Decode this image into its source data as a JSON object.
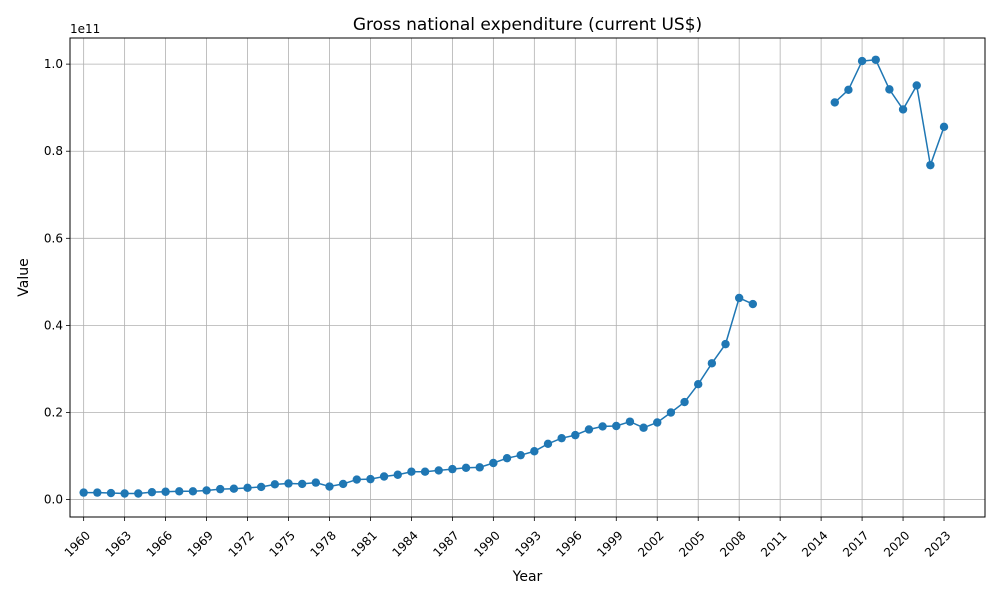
{
  "chart_data": {
    "type": "line",
    "title": "Gross national expenditure (current US$)",
    "xlabel": "Year",
    "ylabel": "Value",
    "y_offset_label": "1e11",
    "y_scale": 100000000000.0,
    "xlim": [
      1959.0,
      2026.0
    ],
    "ylim": [
      -0.04,
      1.06
    ],
    "xticks": [
      1960,
      1963,
      1966,
      1969,
      1972,
      1975,
      1978,
      1981,
      1984,
      1987,
      1990,
      1993,
      1996,
      1999,
      2002,
      2005,
      2008,
      2011,
      2014,
      2017,
      2020,
      2023
    ],
    "yticks": [
      "0.0",
      "0.2",
      "0.4",
      "0.6",
      "0.8",
      "1.0"
    ],
    "grid": true,
    "color": "#1f77b4",
    "series": [
      {
        "values_note": "values in units of 1e11 current US$; null = no data",
        "x": [
          1960,
          1961,
          1962,
          1963,
          1964,
          1965,
          1966,
          1967,
          1968,
          1969,
          1970,
          1971,
          1972,
          1973,
          1974,
          1975,
          1976,
          1977,
          1978,
          1979,
          1980,
          1981,
          1982,
          1983,
          1984,
          1985,
          1986,
          1987,
          1988,
          1989,
          1990,
          1991,
          1992,
          1993,
          1994,
          1995,
          1996,
          1997,
          1998,
          1999,
          2000,
          2001,
          2002,
          2003,
          2004,
          2005,
          2006,
          2007,
          2008,
          2009,
          2010,
          2011,
          2012,
          2013,
          2014,
          2015,
          2016,
          2017,
          2018,
          2019,
          2020,
          2021,
          2022,
          2023
        ],
        "y": [
          0.016,
          0.016,
          0.015,
          0.014,
          0.014,
          0.017,
          0.018,
          0.019,
          0.019,
          0.021,
          0.024,
          0.025,
          0.027,
          0.029,
          0.035,
          0.037,
          0.036,
          0.039,
          0.03,
          0.036,
          0.046,
          0.047,
          0.053,
          0.057,
          0.064,
          0.064,
          0.067,
          0.07,
          0.073,
          0.074,
          0.084,
          0.095,
          0.102,
          0.111,
          0.128,
          0.141,
          0.148,
          0.161,
          0.168,
          0.169,
          0.179,
          0.165,
          0.177,
          0.2,
          0.224,
          0.265,
          0.313,
          0.357,
          0.463,
          0.449,
          null,
          null,
          null,
          null,
          null,
          0.912,
          0.941,
          1.007,
          1.01,
          0.942,
          0.896,
          0.951,
          0.768,
          0.856
        ]
      }
    ]
  }
}
